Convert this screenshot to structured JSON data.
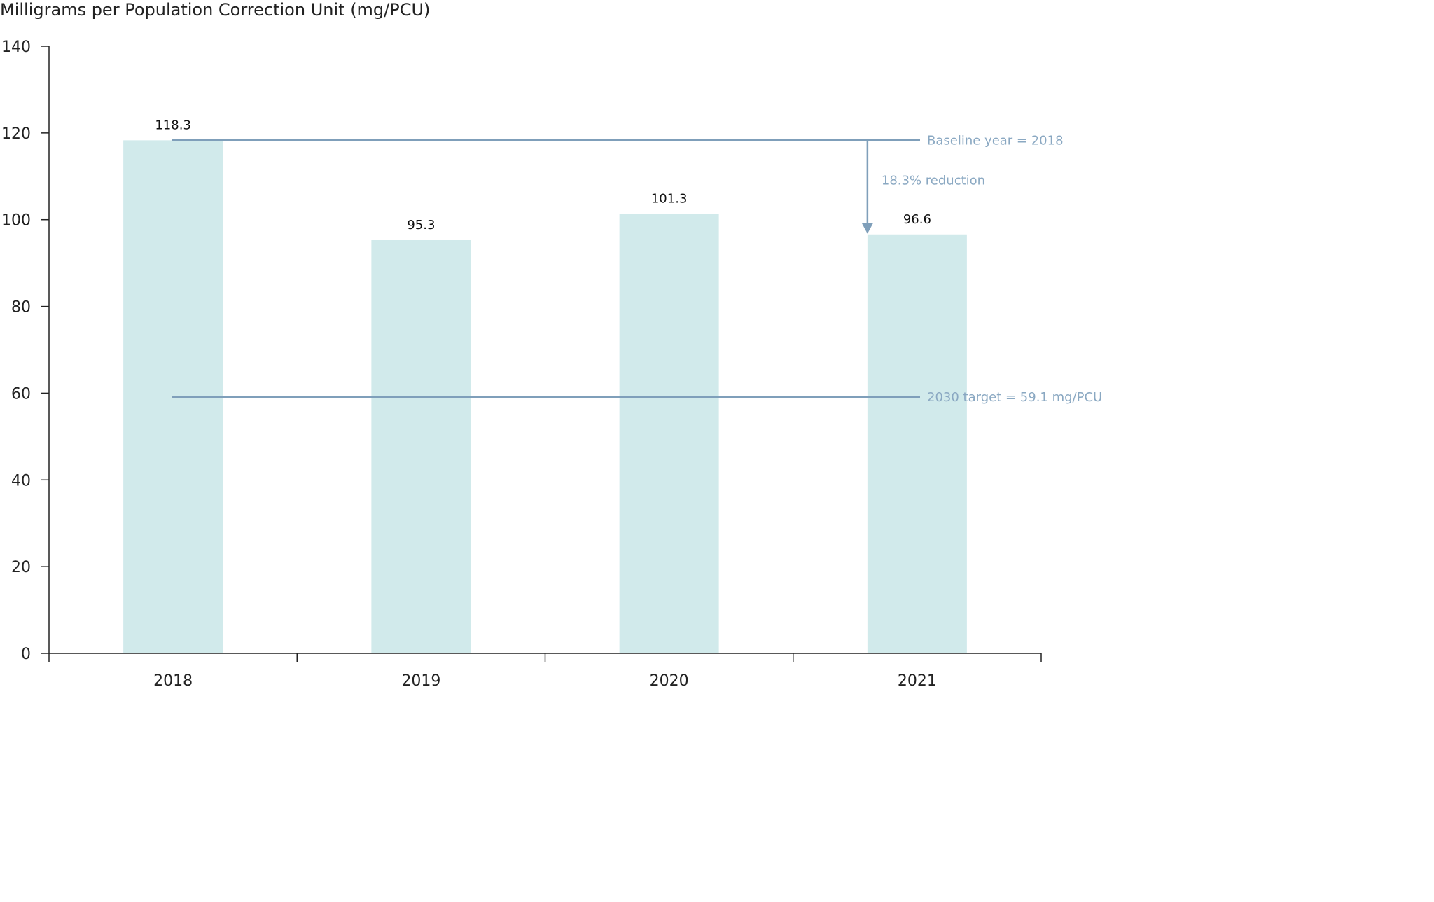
{
  "chart_data": {
    "type": "bar",
    "ylabel": "Milligrams per Population Correction Unit (mg/PCU)",
    "xlabel": "",
    "categories": [
      "2018",
      "2019",
      "2020",
      "2021"
    ],
    "values": [
      118.3,
      95.3,
      101.3,
      96.6
    ],
    "value_labels": [
      "118.3",
      "95.3",
      "101.3",
      "96.6"
    ],
    "ylim": [
      0,
      140
    ],
    "yticks": [
      0,
      20,
      40,
      60,
      80,
      100,
      120,
      140
    ],
    "grid": false,
    "bar_color": "#d1eaeb",
    "reference_lines": [
      {
        "value": 118.3,
        "label": "Baseline year = 2018",
        "color": "#7f9fba"
      },
      {
        "value": 59.1,
        "label": "2030 target = 59.1 mg/PCU",
        "color": "#7f9fba"
      }
    ],
    "reduction_annotation": {
      "label": "18.3% reduction",
      "from": 118.3,
      "to": 96.6,
      "category": "2021",
      "color": "#7f9fba"
    }
  }
}
